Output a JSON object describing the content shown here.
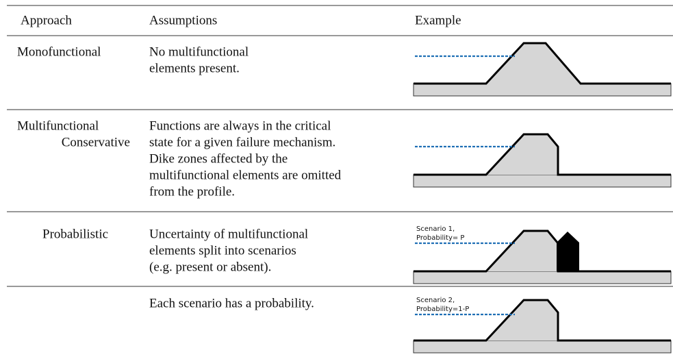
{
  "table": {
    "header": [
      "Approach",
      "Assumptions",
      "Example"
    ],
    "rows": [
      {
        "approach": [
          "Monofunctional"
        ],
        "assumptions": [
          "No multifunctional",
          "elements present."
        ]
      },
      {
        "approach": [
          "Multifunctional",
          "Conservative"
        ],
        "assumptions": [
          "Functions are always in the critical",
          "state for a given failure mechanism.",
          "Dike zones affected by the",
          "multifunctional elements are omitted",
          "from the profile."
        ]
      },
      {
        "approach": [
          "Probabilistic"
        ],
        "assumptions": [
          "Uncertainty of multifunctional",
          "elements split into scenarios",
          "(e.g. present or absent)."
        ],
        "example": [
          "Scenario 1,",
          "Probability= P"
        ]
      },
      {
        "assumptions": [
          "Each scenario has a probability."
        ],
        "example": [
          "Scenario 2,",
          "Probability=1-P"
        ]
      }
    ]
  }
}
